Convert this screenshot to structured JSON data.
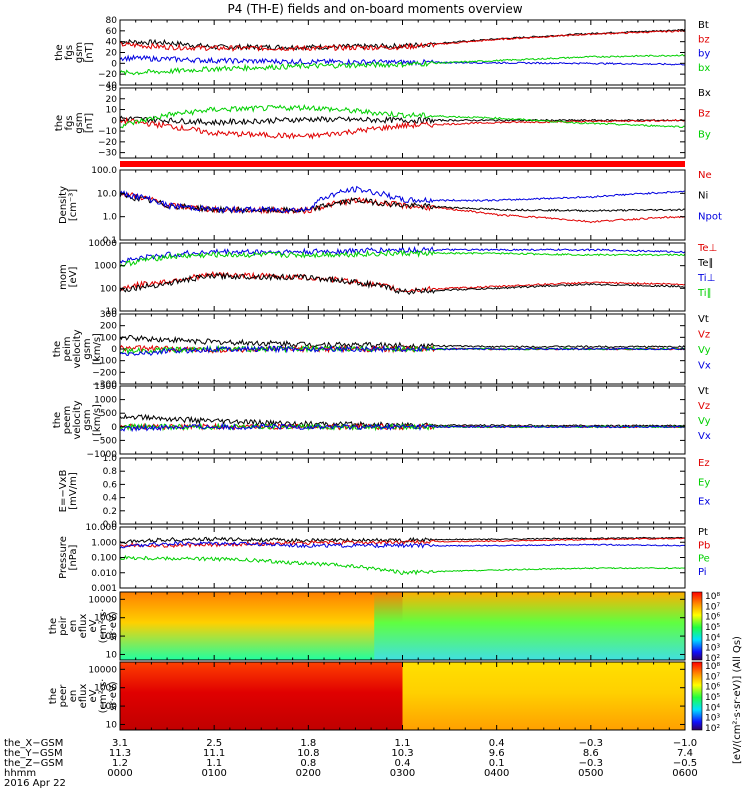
{
  "title": "P4 (TH-E) fields and on-board moments overview",
  "colors": {
    "black": "#000000",
    "red": "#e00000",
    "blue": "#0000e0",
    "green": "#00d000"
  },
  "chart_data": [
    {
      "type": "line",
      "panel": "fgs-gsm",
      "ylabel": [
        "the",
        "fgs",
        "gsm",
        "[nT]"
      ],
      "yticks": [
        "80",
        "60",
        "40",
        "20",
        "0",
        "−20",
        "−40"
      ],
      "ylim": [
        -40,
        80
      ],
      "log": false,
      "series": [
        {
          "name": "Bt",
          "color": "#000000",
          "x": [
            0,
            30,
            60,
            120,
            180,
            240,
            300,
            360
          ],
          "values": [
            40,
            38,
            30,
            30,
            32,
            45,
            55,
            62
          ]
        },
        {
          "name": "bz",
          "color": "#e00000",
          "x": [
            0,
            30,
            60,
            120,
            180,
            240,
            300,
            360
          ],
          "values": [
            35,
            30,
            28,
            28,
            30,
            44,
            54,
            60
          ]
        },
        {
          "name": "by",
          "color": "#0000e0",
          "x": [
            0,
            30,
            60,
            120,
            180,
            240,
            300,
            360
          ],
          "values": [
            10,
            8,
            5,
            3,
            2,
            1,
            0,
            -2
          ]
        },
        {
          "name": "bx",
          "color": "#00d000",
          "x": [
            0,
            30,
            60,
            120,
            180,
            240,
            300,
            360
          ],
          "values": [
            -18,
            -15,
            -10,
            -5,
            -2,
            5,
            12,
            15
          ]
        }
      ]
    },
    {
      "type": "line",
      "panel": "fgs-gsm-detrended",
      "ylabel": [
        "the",
        "fgs",
        "gsm",
        "[nT]"
      ],
      "yticks": [
        "30",
        "20",
        "10",
        "0",
        "−10",
        "−20",
        "−30"
      ],
      "ylim": [
        -35,
        30
      ],
      "log": false,
      "series": [
        {
          "name": "Bx",
          "color": "#000000",
          "x": [
            0,
            30,
            60,
            120,
            180,
            240,
            300,
            360
          ],
          "values": [
            2,
            0,
            -2,
            1,
            0,
            0,
            0,
            0
          ]
        },
        {
          "name": "Bz",
          "color": "#e00000",
          "x": [
            0,
            30,
            60,
            120,
            180,
            240,
            300,
            360
          ],
          "values": [
            0,
            -5,
            -12,
            -15,
            -5,
            -2,
            -1,
            0
          ]
        },
        {
          "name": "By",
          "color": "#00d000",
          "x": [
            0,
            30,
            60,
            120,
            180,
            240,
            300,
            360
          ],
          "values": [
            -5,
            5,
            10,
            12,
            5,
            2,
            -3,
            -6
          ]
        }
      ]
    },
    {
      "type": "line",
      "panel": "density",
      "ylabel": [
        "Density",
        "[cm⁻³]"
      ],
      "yticks": [
        "100.0",
        "10.0",
        "1.0",
        "0.1"
      ],
      "ylim": [
        0.1,
        100
      ],
      "log": true,
      "series": [
        {
          "name": "Ne",
          "color": "#e00000",
          "x": [
            0,
            30,
            60,
            120,
            150,
            180,
            240,
            300,
            360
          ],
          "values": [
            10,
            3,
            2,
            1.8,
            5,
            3,
            1.2,
            0.6,
            1.0
          ]
        },
        {
          "name": "Ni",
          "color": "#000000",
          "x": [
            0,
            30,
            60,
            120,
            150,
            180,
            240,
            300,
            360
          ],
          "values": [
            8,
            3,
            2,
            1.8,
            5,
            3,
            2,
            1.8,
            2.0
          ]
        },
        {
          "name": "Npot",
          "color": "#0000e0",
          "x": [
            0,
            30,
            60,
            120,
            150,
            180,
            240,
            300,
            360
          ],
          "values": [
            10,
            3,
            2,
            2,
            15,
            5,
            5,
            7,
            12
          ]
        }
      ]
    },
    {
      "type": "line",
      "panel": "temperature",
      "ylabel": [
        "mom",
        "[eV]"
      ],
      "yticks": [
        "10000",
        "1000",
        "100",
        "10"
      ],
      "ylim": [
        10,
        10000
      ],
      "log": true,
      "series": [
        {
          "name": "Te⊥",
          "color": "#e00000",
          "x": [
            0,
            30,
            60,
            120,
            180,
            240,
            300,
            360
          ],
          "values": [
            100,
            200,
            400,
            300,
            80,
            120,
            180,
            150
          ]
        },
        {
          "name": "Te∥",
          "color": "#000000",
          "x": [
            0,
            30,
            60,
            120,
            180,
            240,
            300,
            360
          ],
          "values": [
            80,
            160,
            350,
            300,
            70,
            100,
            150,
            120
          ]
        },
        {
          "name": "Ti⊥",
          "color": "#0000e0",
          "x": [
            0,
            30,
            60,
            120,
            180,
            240,
            300,
            360
          ],
          "values": [
            1500,
            3000,
            4000,
            4000,
            5000,
            5000,
            5000,
            4000
          ]
        },
        {
          "name": "Ti∥",
          "color": "#00d000",
          "x": [
            0,
            30,
            60,
            120,
            180,
            240,
            300,
            360
          ],
          "values": [
            1000,
            2500,
            3000,
            3000,
            3500,
            3500,
            3000,
            3000
          ]
        }
      ]
    },
    {
      "type": "line",
      "panel": "ion-velocity",
      "ylabel": [
        "the",
        "peim",
        "velocity",
        "gsm",
        "[km/s]"
      ],
      "yticks": [
        "300",
        "200",
        "100",
        "0",
        "−100",
        "−200",
        "−300"
      ],
      "ylim": [
        -300,
        300
      ],
      "log": false,
      "series": [
        {
          "name": "Vt",
          "color": "#000000",
          "x": [
            0,
            30,
            60,
            120,
            180,
            240,
            300,
            360
          ],
          "values": [
            100,
            80,
            60,
            40,
            30,
            20,
            20,
            20
          ]
        },
        {
          "name": "Vz",
          "color": "#e00000",
          "x": [
            0,
            30,
            60,
            120,
            180,
            240,
            300,
            360
          ],
          "values": [
            10,
            0,
            -10,
            0,
            0,
            0,
            0,
            0
          ]
        },
        {
          "name": "Vy",
          "color": "#00d000",
          "x": [
            0,
            30,
            60,
            120,
            180,
            240,
            300,
            360
          ],
          "values": [
            -20,
            -10,
            0,
            0,
            0,
            0,
            0,
            0
          ]
        },
        {
          "name": "Vx",
          "color": "#0000e0",
          "x": [
            0,
            30,
            60,
            120,
            180,
            240,
            300,
            360
          ],
          "values": [
            -50,
            -20,
            0,
            0,
            0,
            0,
            0,
            0
          ]
        }
      ]
    },
    {
      "type": "line",
      "panel": "electron-velocity",
      "ylabel": [
        "the",
        "peem",
        "velocity",
        "gsm",
        "[km/s]"
      ],
      "yticks": [
        "1500",
        "1000",
        "500",
        "0",
        "−500",
        "−1000"
      ],
      "ylim": [
        -1000,
        1500
      ],
      "log": false,
      "series": [
        {
          "name": "Vt",
          "color": "#000000",
          "x": [
            0,
            30,
            60,
            120,
            180,
            240,
            300,
            360
          ],
          "values": [
            400,
            300,
            200,
            100,
            60,
            50,
            40,
            40
          ]
        },
        {
          "name": "Vz",
          "color": "#e00000",
          "x": [
            0,
            30,
            60,
            120,
            180,
            240,
            300,
            360
          ],
          "values": [
            0,
            0,
            0,
            0,
            0,
            0,
            0,
            0
          ]
        },
        {
          "name": "Vy",
          "color": "#00d000",
          "x": [
            0,
            30,
            60,
            120,
            180,
            240,
            300,
            360
          ],
          "values": [
            0,
            0,
            0,
            0,
            0,
            0,
            0,
            0
          ]
        },
        {
          "name": "Vx",
          "color": "#0000e0",
          "x": [
            0,
            30,
            60,
            120,
            180,
            240,
            300,
            360
          ],
          "values": [
            -100,
            0,
            0,
            0,
            0,
            0,
            0,
            0
          ]
        }
      ]
    },
    {
      "type": "line",
      "panel": "efield",
      "ylabel": [
        "E=−VxB",
        "[mV/m]"
      ],
      "yticks": [
        "1.0",
        "0.8",
        "0.6",
        "0.4",
        "0.2",
        "0.0"
      ],
      "ylim": [
        0,
        1
      ],
      "log": false,
      "series": [
        {
          "name": "Ez",
          "color": "#e00000",
          "x": [],
          "values": []
        },
        {
          "name": "Ey",
          "color": "#00d000",
          "x": [],
          "values": []
        },
        {
          "name": "Ex",
          "color": "#0000e0",
          "x": [],
          "values": []
        }
      ]
    },
    {
      "type": "line",
      "panel": "pressure",
      "ylabel": [
        "Pressure",
        "[nPa]"
      ],
      "yticks": [
        "10.000",
        "1.000",
        "0.100",
        "0.010",
        "0.001"
      ],
      "ylim": [
        0.001,
        10
      ],
      "log": true,
      "series": [
        {
          "name": "Pt",
          "color": "#000000",
          "x": [
            0,
            30,
            60,
            120,
            180,
            240,
            300,
            360
          ],
          "values": [
            1.0,
            1.5,
            1.6,
            1.3,
            1.4,
            1.6,
            1.8,
            2.0
          ]
        },
        {
          "name": "Pb",
          "color": "#e00000",
          "x": [
            0,
            30,
            60,
            120,
            180,
            240,
            300,
            360
          ],
          "values": [
            0.7,
            0.6,
            0.7,
            0.9,
            1.0,
            1.2,
            1.5,
            1.8
          ]
        },
        {
          "name": "Pe",
          "color": "#00d000",
          "x": [
            0,
            30,
            60,
            120,
            180,
            240,
            300,
            360
          ],
          "values": [
            0.1,
            0.09,
            0.08,
            0.04,
            0.01,
            0.015,
            0.02,
            0.02
          ]
        },
        {
          "name": "Pi",
          "color": "#0000e0",
          "x": [
            0,
            30,
            60,
            120,
            180,
            240,
            300,
            360
          ],
          "values": [
            0.5,
            0.8,
            0.9,
            0.6,
            0.6,
            0.6,
            0.7,
            0.6
          ]
        }
      ]
    },
    {
      "type": "heatmap",
      "panel": "ion-spectrogram",
      "ylabel": [
        "the",
        "peir",
        "en",
        "eflux",
        "eV",
        "(cm²·s·",
        "sr·eV)"
      ],
      "yticks": [
        "10000",
        "1000",
        "100",
        "10"
      ],
      "ylim": [
        5,
        25000
      ],
      "log": true
    },
    {
      "type": "heatmap",
      "panel": "electron-spectrogram",
      "ylabel": [
        "the",
        "peer",
        "en",
        "eflux",
        "eV",
        "(cm²·s·",
        "sr·eV)"
      ],
      "yticks": [
        "10000",
        "1000",
        "100",
        "10"
      ],
      "ylim": [
        5,
        25000
      ],
      "log": true
    }
  ],
  "colorbar": {
    "label": "[eV/(cm²·s·sr·eV)] (All Qs)",
    "ticks_top": [
      "10⁸",
      "10⁷",
      "10⁶",
      "10⁵",
      "10⁴",
      "10³",
      "10²"
    ],
    "ticks_bottom": [
      "10⁸",
      "10⁷",
      "10⁶",
      "10⁵",
      "10⁴",
      "10³",
      "10²"
    ]
  },
  "ephemeris": {
    "rows": [
      {
        "label": "the_X−GSM",
        "values": [
          "3.1",
          "2.5",
          "1.8",
          "1.1",
          "0.4",
          "−0.3",
          "−1.0"
        ]
      },
      {
        "label": "the_Y−GSM",
        "values": [
          "11.3",
          "11.1",
          "10.8",
          "10.3",
          "9.6",
          "8.6",
          "7.4"
        ]
      },
      {
        "label": "the_Z−GSM",
        "values": [
          "1.2",
          "1.1",
          "0.8",
          "0.4",
          "0.1",
          "−0.3",
          "−0.5"
        ]
      },
      {
        "label": "hhmm",
        "values": [
          "0000",
          "0100",
          "0200",
          "0300",
          "0400",
          "0500",
          "0600"
        ]
      }
    ],
    "date": "2016 Apr 22"
  }
}
